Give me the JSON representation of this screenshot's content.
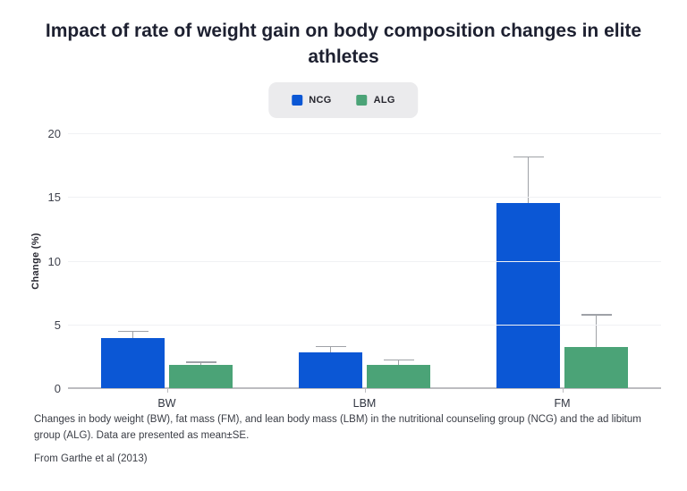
{
  "chart_data": {
    "type": "bar",
    "title": "Impact of rate of weight gain on body composition changes in elite athletes",
    "ylabel": "Change (%)",
    "xlabel": "",
    "ylim": [
      0,
      20
    ],
    "yticks": [
      0,
      5,
      10,
      15,
      20
    ],
    "grid": true,
    "legend_position": "top",
    "categories": [
      "BW",
      "LBM",
      "FM"
    ],
    "series": [
      {
        "name": "NCG",
        "color": "#0b57d5",
        "values": [
          3.9,
          2.8,
          14.5
        ],
        "se": [
          0.6,
          0.5,
          3.7
        ]
      },
      {
        "name": "ALG",
        "color": "#4ba377",
        "values": [
          1.8,
          1.8,
          3.2
        ],
        "se": [
          0.3,
          0.45,
          2.6
        ]
      }
    ],
    "error_note": "error bars show mean+SE, upper whisker with cap only"
  },
  "caption": "Changes in body weight (BW), fat mass (FM), and lean body mass (LBM) in the nutritional counseling group (NCG) and the ad libitum group (ALG). Data are presented as mean±SE.",
  "source": "From Garthe et al (2013)"
}
